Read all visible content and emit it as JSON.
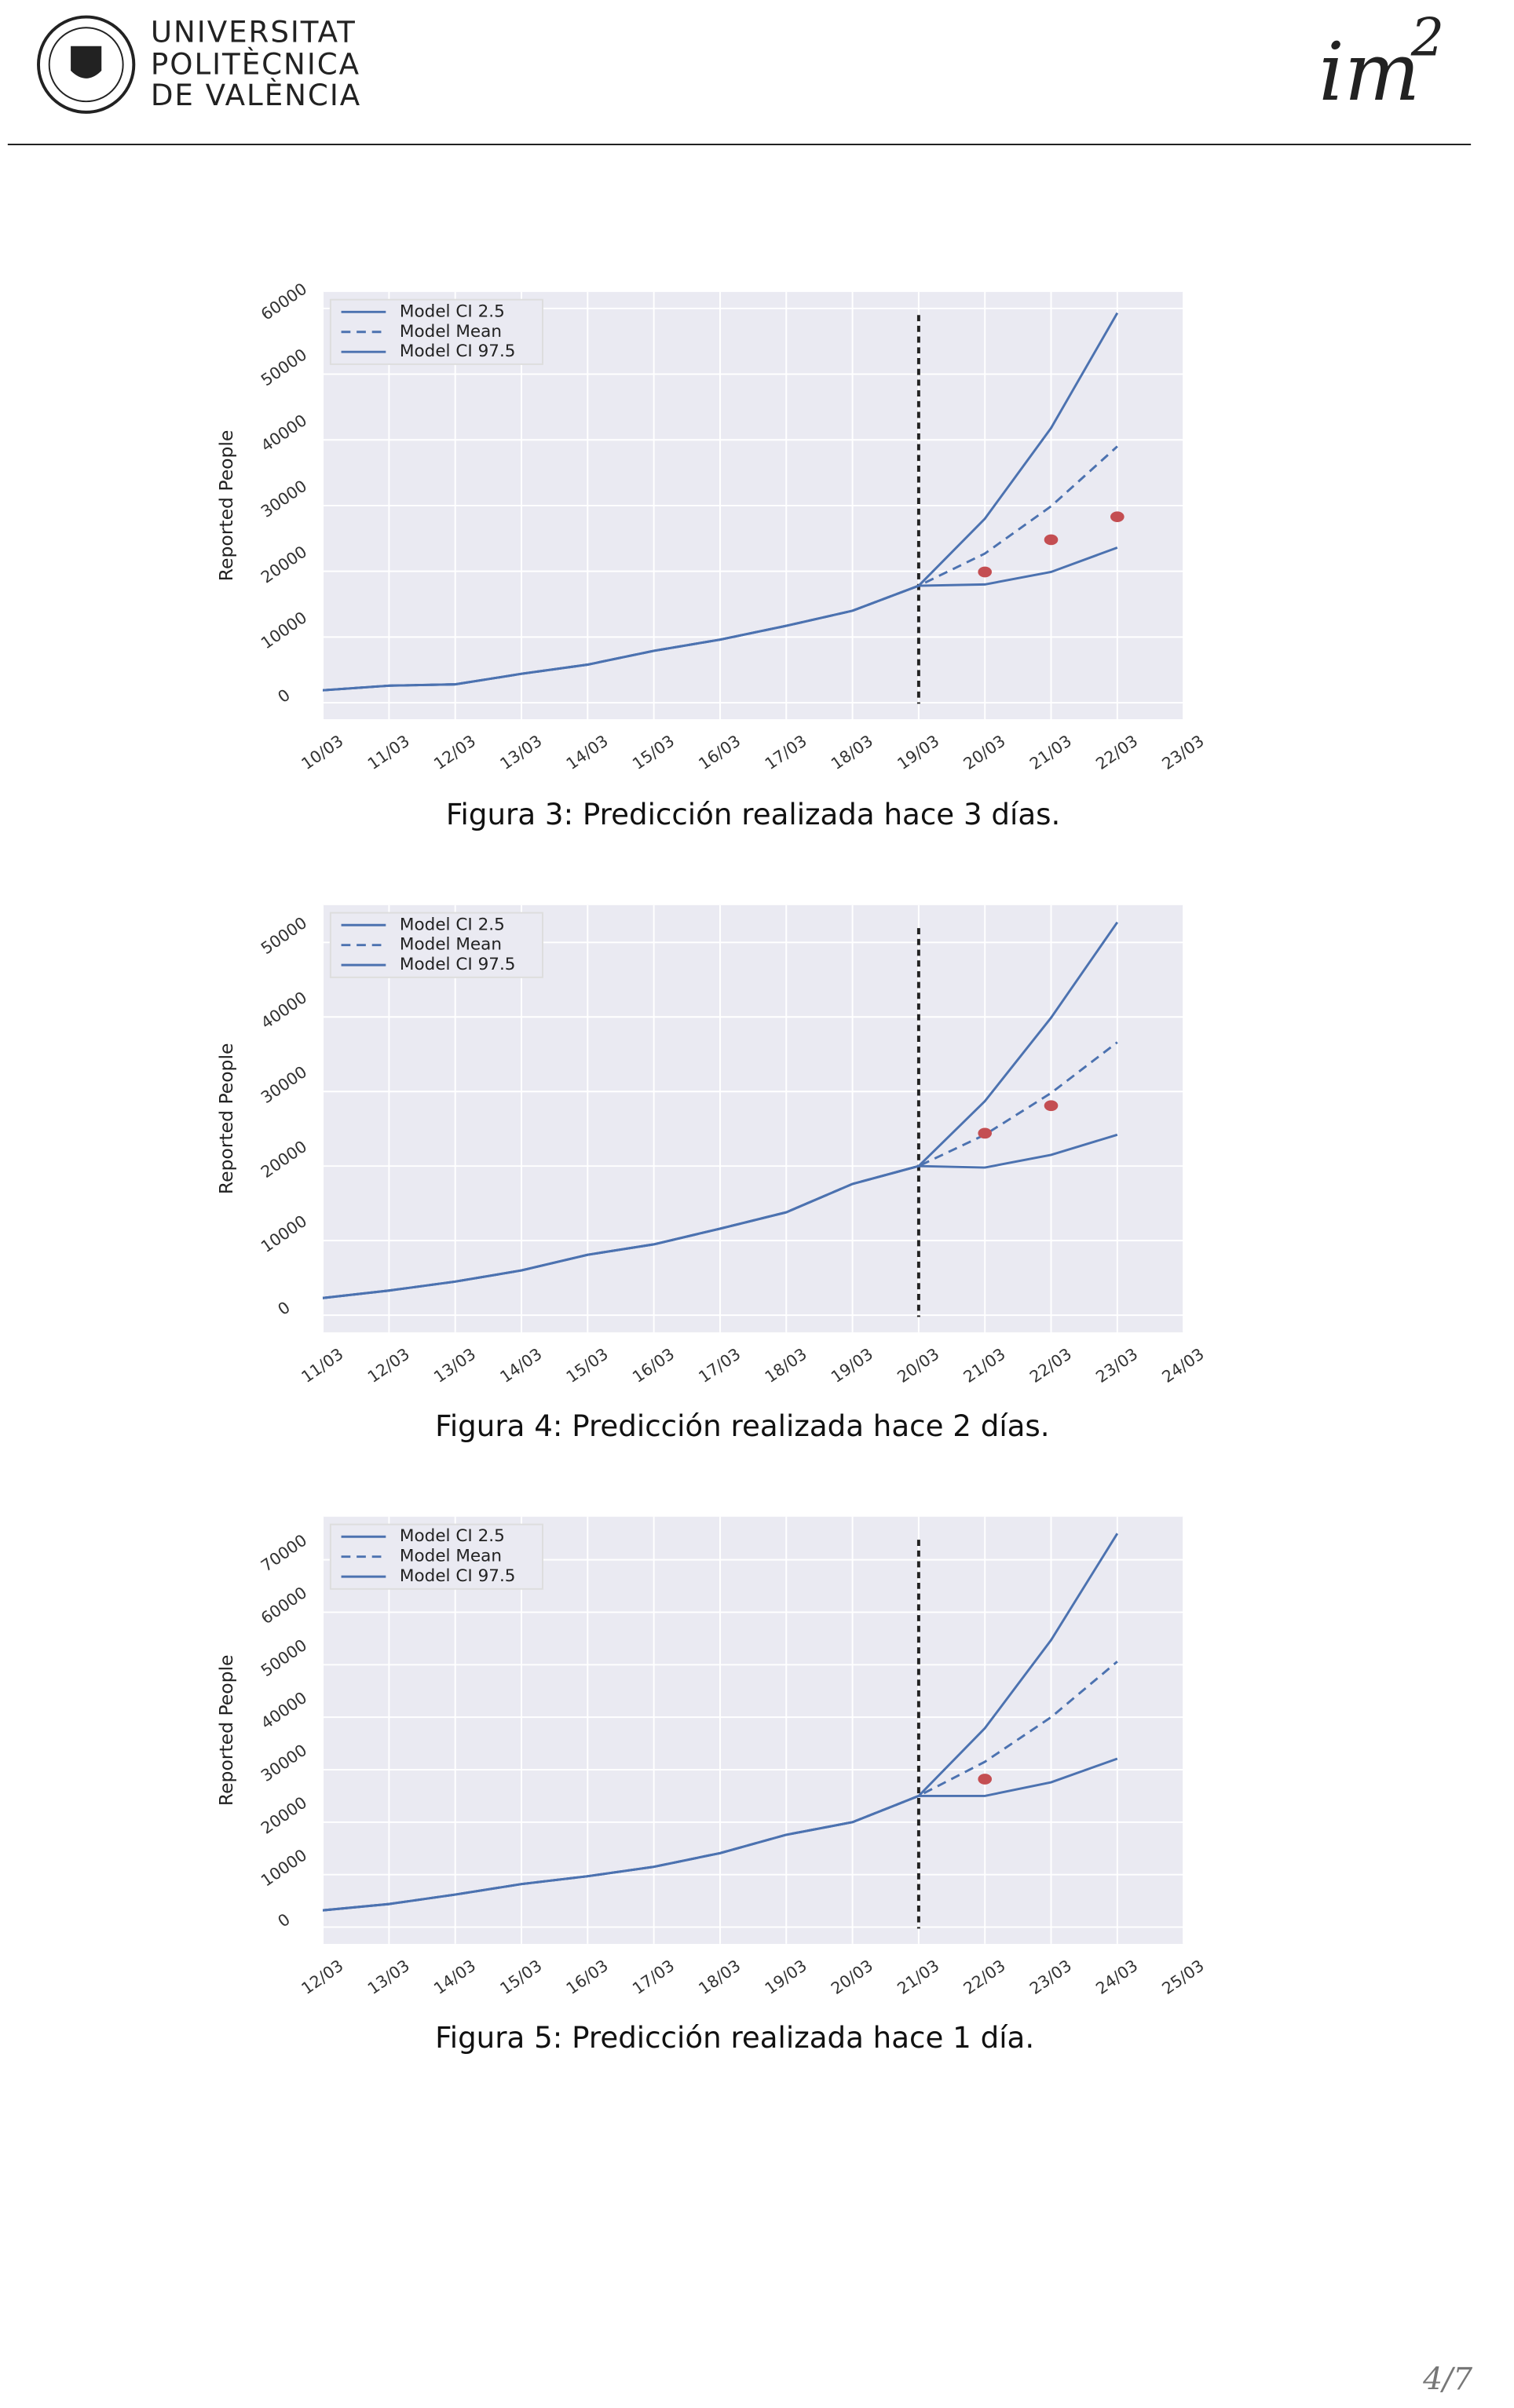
{
  "header": {
    "university": [
      "UNIVERSITAT",
      "POLITÈCNICA",
      "DE VALÈNCIA"
    ],
    "logo": "im",
    "logo_sup": "2"
  },
  "chart_data": [
    {
      "type": "line",
      "ylabel": "Reported People",
      "categories": [
        "10/03",
        "11/03",
        "12/03",
        "13/03",
        "14/03",
        "15/03",
        "16/03",
        "17/03",
        "18/03",
        "19/03",
        "20/03",
        "21/03",
        "22/03",
        "23/03"
      ],
      "series": [
        {
          "name": "Model CI 2.5",
          "color": "#4c72b0",
          "dash": false,
          "values": [
            1900,
            2600,
            2800,
            4400,
            5800,
            7900,
            9600,
            11700,
            14000,
            17800,
            18000,
            19900,
            23600,
            null
          ]
        },
        {
          "name": "Model Mean",
          "color": "#4c72b0",
          "dash": true,
          "values": [
            1900,
            2600,
            2800,
            4400,
            5800,
            7900,
            9600,
            11700,
            14000,
            17800,
            22700,
            29900,
            39000,
            null
          ]
        },
        {
          "name": "Model CI 97.5",
          "color": "#4c72b0",
          "dash": false,
          "values": [
            1900,
            2600,
            2800,
            4400,
            5800,
            7900,
            9600,
            11700,
            14000,
            17800,
            28000,
            41800,
            59300,
            null
          ]
        }
      ],
      "observed": {
        "color": "#c44e52",
        "values": [
          null,
          null,
          null,
          null,
          null,
          null,
          null,
          null,
          null,
          null,
          19900,
          24800,
          28300,
          null
        ]
      },
      "vline_at": "19/03",
      "ylim": [
        -2500,
        62500
      ],
      "yticks": [
        0,
        10000,
        20000,
        30000,
        40000,
        50000,
        60000
      ],
      "grid": true,
      "legend": "upper-left"
    },
    {
      "type": "line",
      "ylabel": "Reported People",
      "categories": [
        "11/03",
        "12/03",
        "13/03",
        "14/03",
        "15/03",
        "16/03",
        "17/03",
        "18/03",
        "19/03",
        "20/03",
        "21/03",
        "22/03",
        "23/03",
        "24/03"
      ],
      "series": [
        {
          "name": "Model CI 2.5",
          "color": "#4c72b0",
          "dash": false,
          "values": [
            2300,
            3300,
            4500,
            6000,
            8100,
            9500,
            11600,
            13800,
            17600,
            20000,
            19800,
            21500,
            24200,
            null
          ]
        },
        {
          "name": "Model Mean",
          "color": "#4c72b0",
          "dash": true,
          "values": [
            2300,
            3300,
            4500,
            6000,
            8100,
            9500,
            11600,
            13800,
            17600,
            20000,
            24200,
            29800,
            36600,
            null
          ]
        },
        {
          "name": "Model CI 97.5",
          "color": "#4c72b0",
          "dash": false,
          "values": [
            2300,
            3300,
            4500,
            6000,
            8100,
            9500,
            11600,
            13800,
            17600,
            20000,
            28700,
            39900,
            52700,
            null
          ]
        }
      ],
      "observed": {
        "color": "#c44e52",
        "values": [
          null,
          null,
          null,
          null,
          null,
          null,
          null,
          null,
          null,
          null,
          24400,
          28100,
          null,
          null
        ]
      },
      "vline_at": "20/03",
      "ylim": [
        -2300,
        55000
      ],
      "yticks": [
        0,
        10000,
        20000,
        30000,
        40000,
        50000
      ],
      "grid": true,
      "legend": "upper-left"
    },
    {
      "type": "line",
      "ylabel": "Reported People",
      "categories": [
        "12/03",
        "13/03",
        "14/03",
        "15/03",
        "16/03",
        "17/03",
        "18/03",
        "19/03",
        "20/03",
        "21/03",
        "22/03",
        "23/03",
        "24/03",
        "25/03"
      ],
      "series": [
        {
          "name": "Model CI 2.5",
          "color": "#4c72b0",
          "dash": false,
          "values": [
            3200,
            4400,
            6200,
            8200,
            9700,
            11500,
            14100,
            17600,
            20000,
            25000,
            25000,
            27600,
            32100,
            null
          ]
        },
        {
          "name": "Model Mean",
          "color": "#4c72b0",
          "dash": true,
          "values": [
            3200,
            4400,
            6200,
            8200,
            9700,
            11500,
            14100,
            17600,
            20000,
            25000,
            31500,
            40000,
            50600,
            null
          ]
        },
        {
          "name": "Model CI 97.5",
          "color": "#4c72b0",
          "dash": false,
          "values": [
            3200,
            4400,
            6200,
            8200,
            9700,
            11500,
            14100,
            17600,
            20000,
            25000,
            37900,
            54700,
            75000,
            null
          ]
        }
      ],
      "observed": {
        "color": "#c44e52",
        "values": [
          null,
          null,
          null,
          null,
          null,
          null,
          null,
          null,
          null,
          null,
          28200,
          null,
          null,
          null
        ]
      },
      "vline_at": "21/03",
      "ylim": [
        -3200,
        78200
      ],
      "yticks": [
        0,
        10000,
        20000,
        30000,
        40000,
        50000,
        60000,
        70000
      ],
      "grid": true,
      "legend": "upper-left"
    }
  ],
  "captions": [
    "Figura 3: Predicción realizada hace 3 días.",
    "Figura 4: Predicción realizada hace 2 días.",
    "Figura 5: Predicción realizada hace 1 día."
  ],
  "page_number": "4/7"
}
